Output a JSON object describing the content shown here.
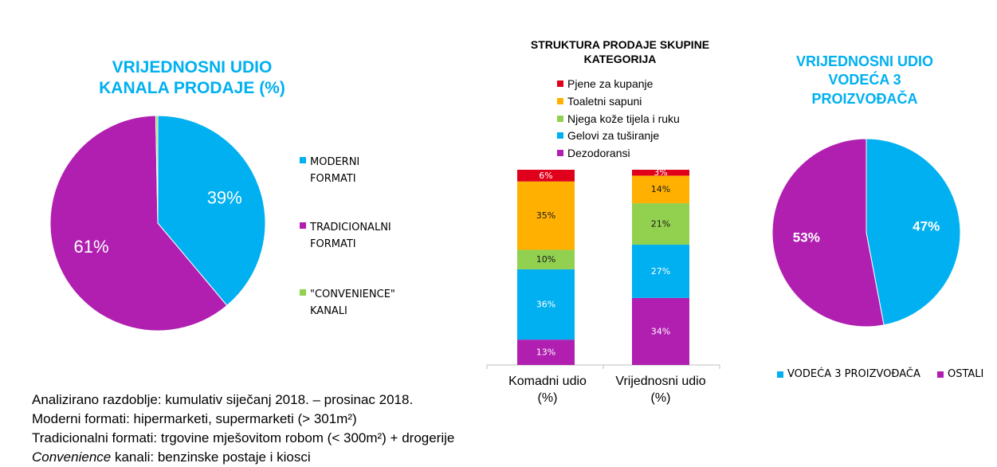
{
  "colors": {
    "blue": "#00b0f0",
    "magenta": "#b01fb0",
    "green": "#92d050",
    "orange": "#ffb000",
    "red": "#e0001b"
  },
  "chart_data": [
    {
      "type": "pie",
      "title": "VRIJEDNOSNI UDIO KANALA PRODAJE (%)",
      "title_lines": [
        "VRIJEDNOSNI UDIO",
        "KANALA PRODAJE (%)"
      ],
      "slices": [
        {
          "name": "MODERNI FORMATI",
          "value": 39,
          "label": "39%",
          "color": "#00b0f0"
        },
        {
          "name": "TRADICIONALNI FORMATI",
          "value": 61,
          "label": "61%",
          "color": "#b01fb0"
        },
        {
          "name": "\"CONVENIENCE\" KANALI",
          "value": 0.3,
          "label": "",
          "color": "#92d050"
        }
      ],
      "legend": [
        "MODERNI FORMATI",
        "TRADICIONALNI\nFORMATI",
        "\"CONVENIENCE\"\nKANALI"
      ],
      "legend_position": "right"
    },
    {
      "type": "bar",
      "stacked": true,
      "title": "STRUKTURA PRODAJE SKUPINE KATEGORIJA",
      "title_lines": [
        "STRUKTURA PRODAJE SKUPINE",
        "KATEGORIJA"
      ],
      "categories": [
        "Komadni udio (%)",
        "Vrijednosni udio (%)"
      ],
      "category_lines": [
        [
          "Komadni udio",
          "(%)"
        ],
        [
          "Vrijednosni udio",
          "(%)"
        ]
      ],
      "series": [
        {
          "name": "Dezodoransi",
          "values": [
            13,
            34
          ],
          "labels": [
            "13%",
            "34%"
          ],
          "color": "#b01fb0"
        },
        {
          "name": "Gelovi za tuširanje",
          "values": [
            36,
            27
          ],
          "labels": [
            "36%",
            "27%"
          ],
          "color": "#00b0f0"
        },
        {
          "name": "Njega kože tijela i ruku",
          "values": [
            10,
            21
          ],
          "labels": [
            "10%",
            "21%"
          ],
          "color": "#92d050"
        },
        {
          "name": "Toaletni sapuni",
          "values": [
            35,
            14
          ],
          "labels": [
            "35%",
            "14%"
          ],
          "color": "#ffb000"
        },
        {
          "name": "Pjene za kupanje",
          "values": [
            6,
            3
          ],
          "labels": [
            "6%",
            "3%"
          ],
          "color": "#e0001b"
        }
      ],
      "legend_order": [
        "Pjene za kupanje",
        "Toaletni sapuni",
        "Njega kože tijela i ruku",
        "Gelovi za tuširanje",
        "Dezodoransi"
      ],
      "legend_position": "top",
      "ylim": [
        0,
        100
      ]
    },
    {
      "type": "pie",
      "title": "VRIJEDNOSNI UDIO VODEĆA 3 PROIZVOĐAČA",
      "title_lines": [
        "VRIJEDNOSNI UDIO",
        "VODEĆA 3",
        "PROIZVOĐAČA"
      ],
      "slices": [
        {
          "name": "VODEĆA 3 PROIZVOĐAČA",
          "value": 47,
          "label": "47%",
          "color": "#00b0f0"
        },
        {
          "name": "OSTALI",
          "value": 53,
          "label": "53%",
          "color": "#b01fb0"
        }
      ],
      "legend": [
        "VODEĆA 3 PROIZVOĐAČA",
        "OSTALI"
      ],
      "legend_position": "bottom"
    }
  ],
  "notes": {
    "line1": "Analizirano razdoblje: kumulativ siječanj 2018. – prosinac 2018.",
    "line2": "Moderni formati: hipermarketi, supermarketi (> 301m²)",
    "line3": "Tradicionalni formati: trgovine mješovitom robom (< 300m²) + drogerije",
    "line4_italic": "Convenience",
    "line4_rest": " kanali: benzinske postaje i kiosci"
  }
}
